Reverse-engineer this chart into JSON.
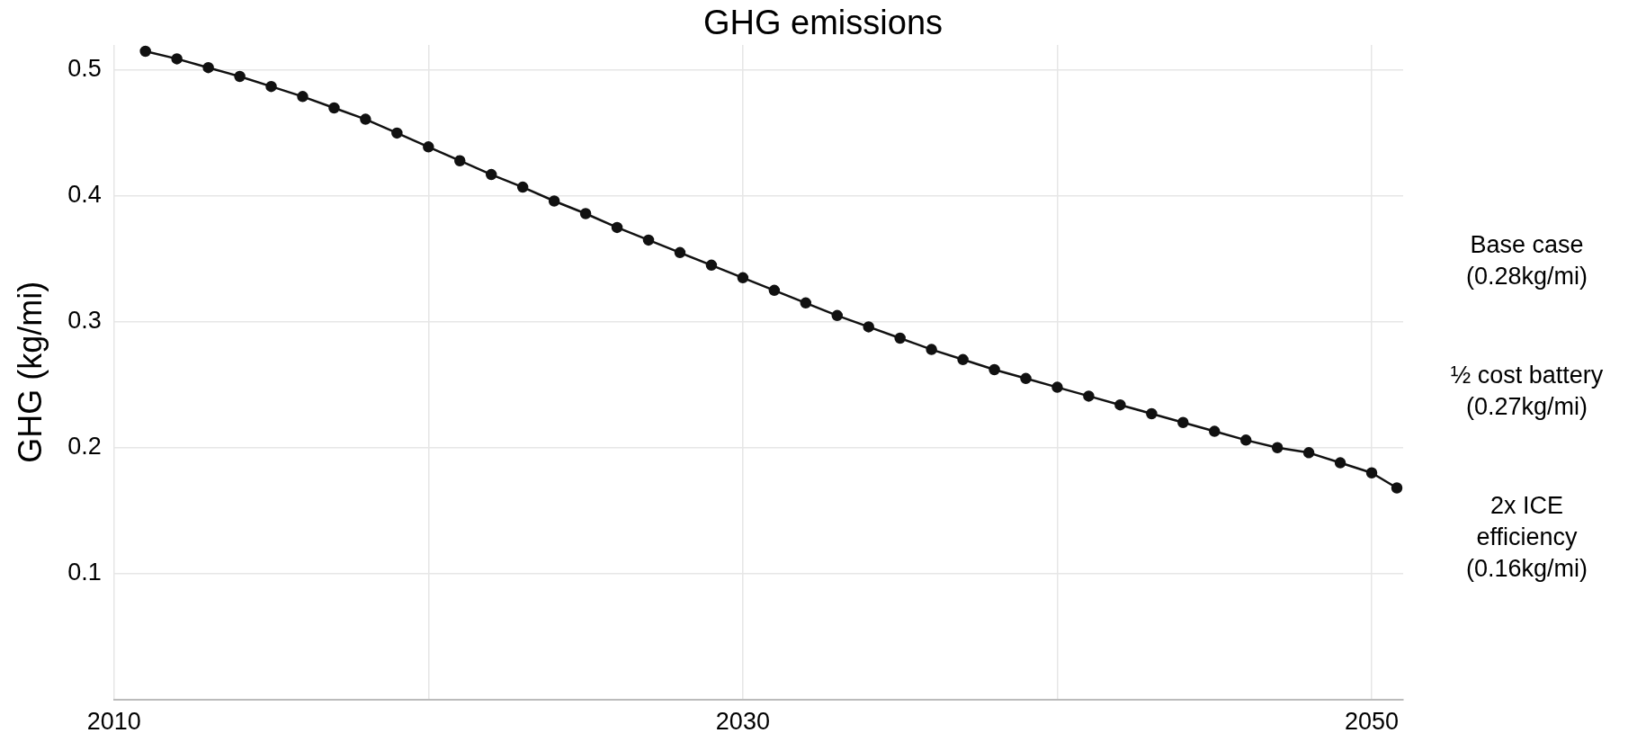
{
  "chart_data": {
    "type": "line",
    "title": "GHG emissions",
    "ylabel": "GHG (kg/mi)",
    "xlim": [
      2010,
      2051
    ],
    "xticks": [
      2010,
      {
        "value": 2020,
        "label": null
      },
      2030,
      {
        "value": 2040,
        "label": null
      },
      2050
    ],
    "ylim": [
      0,
      0.52
    ],
    "yticks": [
      0.1,
      0.2,
      0.3,
      0.4,
      0.5
    ],
    "grid": true,
    "legend": false,
    "marker": "circle",
    "line_style": "solid",
    "annotations": [
      "Base case\n(0.28kg/mi)",
      "½ cost battery\n(0.27kg/mi)",
      "2x ICE\nefficiency\n(0.16kg/mi)"
    ],
    "series": [
      {
        "color": "#111111",
        "x": [
          2011,
          2012,
          2013,
          2014,
          2015,
          2016,
          2017,
          2018,
          2019,
          2020,
          2021,
          2022,
          2023,
          2024,
          2025,
          2026,
          2027,
          2028,
          2029,
          2030,
          2031,
          2032,
          2033,
          2034,
          2035,
          2036,
          2037,
          2038,
          2039,
          2040,
          2041,
          2042,
          2043,
          2044,
          2045,
          2046,
          2047,
          2048,
          2049,
          2050,
          2050.8
        ],
        "values": [
          0.515,
          0.509,
          0.502,
          0.495,
          0.487,
          0.479,
          0.47,
          0.461,
          0.45,
          0.439,
          0.428,
          0.417,
          0.407,
          0.396,
          0.386,
          0.375,
          0.365,
          0.355,
          0.345,
          0.335,
          0.325,
          0.315,
          0.305,
          0.296,
          0.287,
          0.278,
          0.27,
          0.262,
          0.255,
          0.248,
          0.241,
          0.234,
          0.227,
          0.22,
          0.213,
          0.206,
          0.2,
          0.196,
          0.188,
          0.18,
          0.168
        ]
      }
    ]
  }
}
